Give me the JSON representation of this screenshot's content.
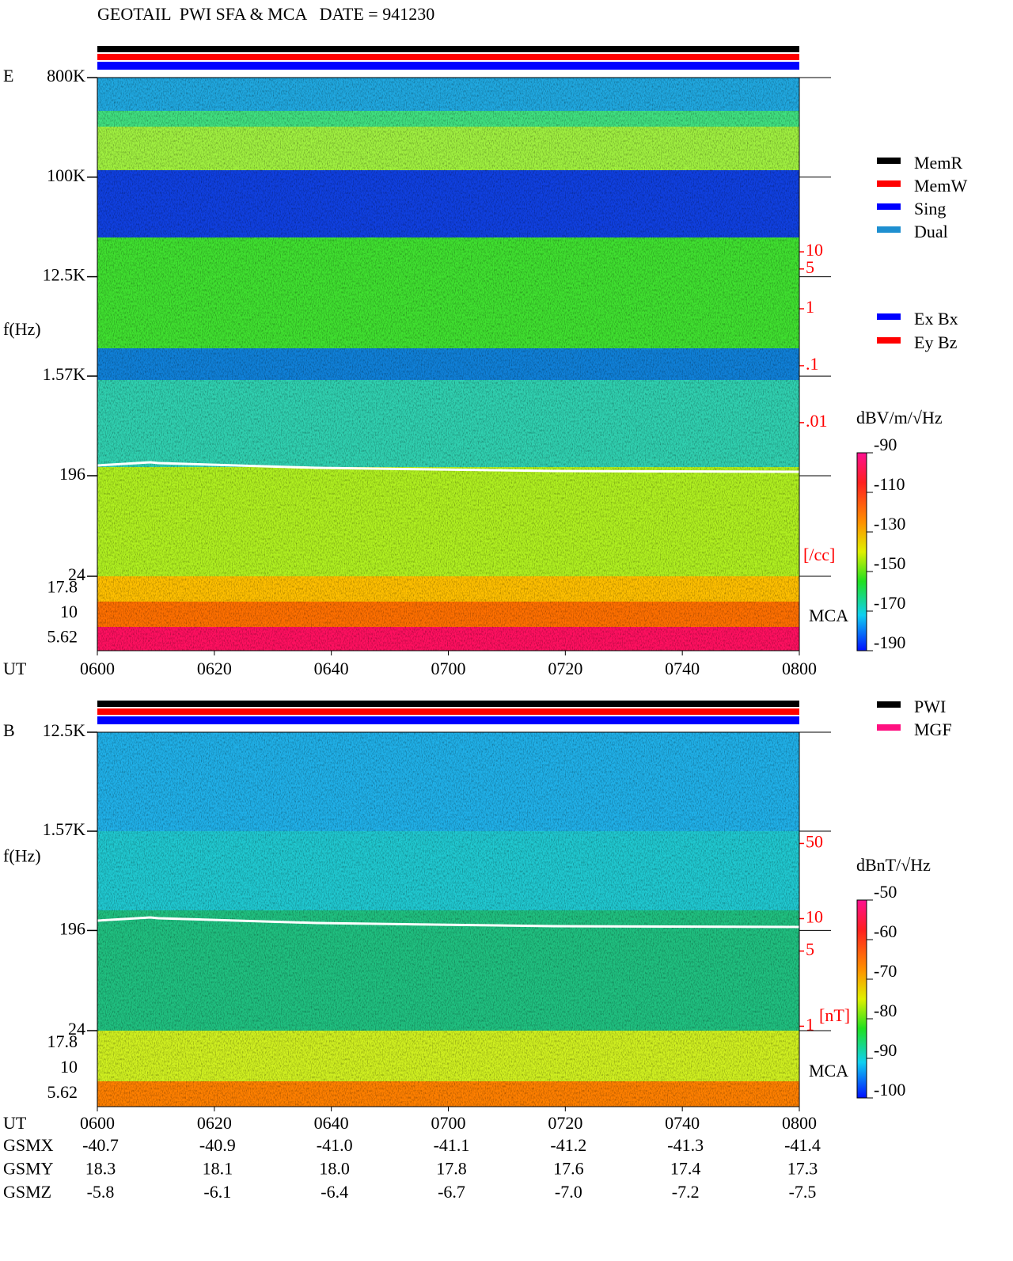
{
  "header": {
    "title": "GEOTAIL  PWI SFA & MCA   DATE = 941230"
  },
  "chart_data": [
    {
      "type": "spectrogram",
      "panel_label": "E",
      "y_label": "f(Hz)",
      "x_label": "UT",
      "x": [
        "0600",
        "0620",
        "0640",
        "0700",
        "0720",
        "0740",
        "0800"
      ],
      "log_scale": true,
      "ylim": [
        24,
        800000
      ],
      "yticks": [
        {
          "value": 800000,
          "label": "800K"
        },
        {
          "value": 100000,
          "label": "100K"
        },
        {
          "value": 12500,
          "label": "12.5K"
        },
        {
          "value": 1570,
          "label": "1.57K"
        },
        196,
        24
      ],
      "mca_label": "MCA",
      "mca_ticks": [
        17.8,
        10,
        5.62
      ],
      "y2lim": [
        2e-05,
        11500
      ],
      "y2ticks": [
        10,
        5,
        1,
        {
          "value": 0.1,
          "label": ".1"
        },
        {
          "value": 0.01,
          "label": ".01"
        }
      ],
      "y2_label": "[/cc]",
      "legend": [
        {
          "name": "MemR",
          "color": "#000000"
        },
        {
          "name": "MemW",
          "color": "#ff0000"
        },
        {
          "name": "Sing",
          "color": "#0000ff"
        },
        {
          "name": "Dual",
          "color": "#1e8fd0"
        }
      ],
      "legend2": [
        {
          "name": "Ex Bx",
          "color": "#0000ff"
        },
        {
          "name": "Ey Bz",
          "color": "#ff0000"
        }
      ],
      "colorbar": {
        "label": "dBV/m/√Hz",
        "lim": [
          -190,
          -90
        ],
        "ticks": [
          -90,
          -110,
          -130,
          -150,
          -170,
          -190
        ]
      }
    },
    {
      "type": "spectrogram",
      "panel_label": "B",
      "y_label": "f(Hz)",
      "x_label": "UT",
      "x": [
        "0600",
        "0620",
        "0640",
        "0700",
        "0720",
        "0740",
        "0800"
      ],
      "log_scale": true,
      "ylim": [
        24,
        12500
      ],
      "yticks": [
        {
          "value": 12500,
          "label": "12.5K"
        },
        {
          "value": 1570,
          "label": "1.57K"
        },
        196,
        24
      ],
      "mca_label": "MCA",
      "mca_ticks": [
        17.8,
        10,
        5.62
      ],
      "y2lim": [
        0.91,
        540
      ],
      "y2ticks": [
        50,
        10,
        5,
        1
      ],
      "y2_label": "[nT]",
      "legend": [
        {
          "name": "PWI",
          "color": "#000000"
        },
        {
          "name": "MGF",
          "color": "#ff1080"
        }
      ],
      "colorbar": {
        "label": "dBnT/√Hz",
        "lim": [
          -100,
          -50
        ],
        "ticks": [
          -50,
          -60,
          -70,
          -80,
          -90,
          -100
        ]
      }
    }
  ],
  "ephemeris": {
    "rows": [
      {
        "label": "GSMX",
        "values": [
          "-40.7",
          "-40.9",
          "-41.0",
          "-41.1",
          "-41.2",
          "-41.3",
          "-41.4"
        ]
      },
      {
        "label": "GSMY",
        "values": [
          "18.3",
          "18.1",
          "18.0",
          "17.8",
          "17.6",
          "17.4",
          "17.3"
        ]
      },
      {
        "label": "GSMZ",
        "values": [
          "-5.8",
          "-6.1",
          "-6.4",
          "-6.7",
          "-7.0",
          "-7.2",
          "-7.5"
        ]
      }
    ]
  }
}
